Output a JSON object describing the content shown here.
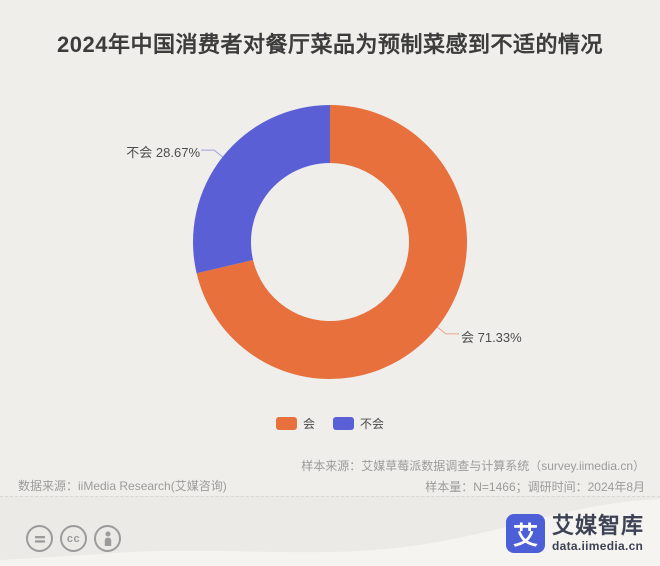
{
  "title": "2024年中国消费者对餐厅菜品为预制菜感到不适的情况",
  "chart_data": {
    "type": "pie",
    "subtype": "donut",
    "categories": [
      "会",
      "不会"
    ],
    "values": [
      71.33,
      28.67
    ],
    "unit": "%",
    "colors": [
      "#e7703c",
      "#5a5fd6"
    ],
    "callouts": [
      "会 71.33%",
      "不会 28.67%"
    ],
    "legend": [
      "会",
      "不会"
    ],
    "legend_position": "bottom",
    "start_angle_deg_from_top": 0,
    "direction": "clockwise"
  },
  "source": {
    "sample_source": "样本来源：艾媒草莓派数据调查与计算系统（survey.iimedia.cn）",
    "sample_info": "样本量：N=1466；调研时间：2024年8月",
    "data_source": "数据来源：iiMedia Research(艾媒咨询)"
  },
  "footer": {
    "license_icons": [
      "equals-icon",
      "cc-icon",
      "person-icon"
    ],
    "brand_glyph": "艾",
    "brand_name": "艾媒智库",
    "brand_url": "data.iimedia.cn",
    "brand_blue": "#4c5fd7"
  },
  "theme": {
    "background": "#efeeeb",
    "title_color": "#3c3c3c",
    "source_text_color": "#9c9b99"
  }
}
